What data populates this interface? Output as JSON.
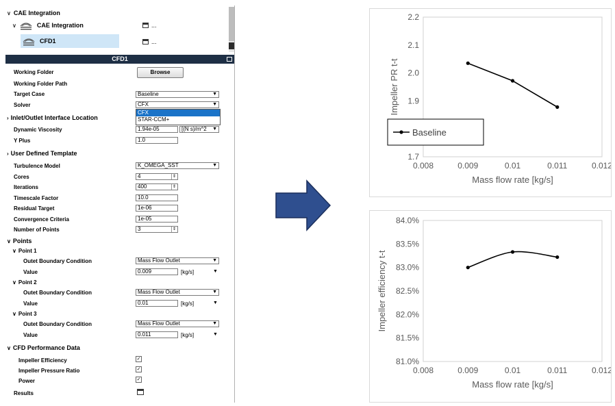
{
  "tree": {
    "root_label": "CAE Integration",
    "child_label": "CAE Integration",
    "selected_label": "CFD1",
    "more": "..."
  },
  "panel": {
    "title": "CFD1",
    "working_folder_label": "Working Folder",
    "browse_label": "Browse",
    "working_folder_path_label": "Working Folder Path",
    "target_case_label": "Target Case",
    "target_case_value": "Baseline",
    "solver_label": "Solver",
    "solver_value": "CFX",
    "solver_options": [
      "CFX",
      "STAR-CCM+"
    ],
    "inlet_section": "Inlet/Outlet Interface Location",
    "dyn_visc_label": "Dynamic Viscosity",
    "dyn_visc_value": "1.94e-05",
    "dyn_visc_unit": "[(N s)/m^2",
    "yplus_label": "Y Plus",
    "yplus_value": "1.0",
    "udt_section": "User Defined Template",
    "turb_label": "Turbulence Model",
    "turb_value": "K_OMEGA_SST",
    "cores_label": "Cores",
    "cores_value": "4",
    "iter_label": "Iterations",
    "iter_value": "400",
    "timescale_label": "Timescale Factor",
    "timescale_value": "10.0",
    "residual_label": "Residual Target",
    "residual_value": "1e-06",
    "conv_label": "Convergence Criteria",
    "conv_value": "1e-05",
    "npoints_label": "Number of Points",
    "npoints_value": "3",
    "points_section": "Points",
    "points": [
      {
        "title": "Point 1",
        "bc_label": "Outet Boundary Condition",
        "bc_value": "Mass Flow Outlet",
        "value_label": "Value",
        "value": "0.009",
        "unit": "[kg/s]"
      },
      {
        "title": "Point 2",
        "bc_label": "Outet Boundary Condition",
        "bc_value": "Mass Flow Outlet",
        "value_label": "Value",
        "value": "0.01",
        "unit": "[kg/s]"
      },
      {
        "title": "Point 3",
        "bc_label": "Outet Boundary Condition",
        "bc_value": "Mass Flow Outlet",
        "value_label": "Value",
        "value": "0.011",
        "unit": "[kg/s]"
      }
    ],
    "perf_section": "CFD Performance Data",
    "eff_label": "Impeller Efficiency",
    "pr_label": "Impeller Pressure Ratio",
    "power_label": "Power",
    "results_label": "Results"
  },
  "colors": {
    "header_bg": "#1e2f45",
    "arrow_fill": "#2f4f8f",
    "selection": "#cfe6f7",
    "dropdown_highlight": "#1a73c8"
  },
  "chart_data": [
    {
      "type": "line",
      "title": "",
      "xlabel": "Mass flow rate [kg/s]",
      "ylabel": "Impeller PR t-t",
      "xlim": [
        0.008,
        0.012
      ],
      "ylim": [
        1.7,
        2.2
      ],
      "xticks": [
        "0.008",
        "0.009",
        "0.01",
        "0.011",
        "0.012"
      ],
      "yticks": [
        "1.7",
        "1.8",
        "1.9",
        "2.0",
        "2.1",
        "2.2"
      ],
      "legend_position": "lower-left",
      "series": [
        {
          "name": "Baseline",
          "x": [
            0.009,
            0.01,
            0.011
          ],
          "y": [
            2.035,
            1.972,
            1.878
          ]
        }
      ]
    },
    {
      "type": "line",
      "title": "",
      "xlabel": "Mass flow rate [kg/s]",
      "ylabel": "Impeller efficiency t-t",
      "xlim": [
        0.008,
        0.012
      ],
      "ylim": [
        81.0,
        84.0
      ],
      "xticks": [
        "0.008",
        "0.009",
        "0.01",
        "0.011",
        "0.012"
      ],
      "yticks": [
        "81.0%",
        "81.5%",
        "82.0%",
        "82.5%",
        "83.0%",
        "83.5%",
        "84.0%"
      ],
      "series": [
        {
          "x": [
            0.009,
            0.01,
            0.011
          ],
          "y": [
            83.0,
            83.33,
            83.22
          ]
        }
      ]
    }
  ]
}
